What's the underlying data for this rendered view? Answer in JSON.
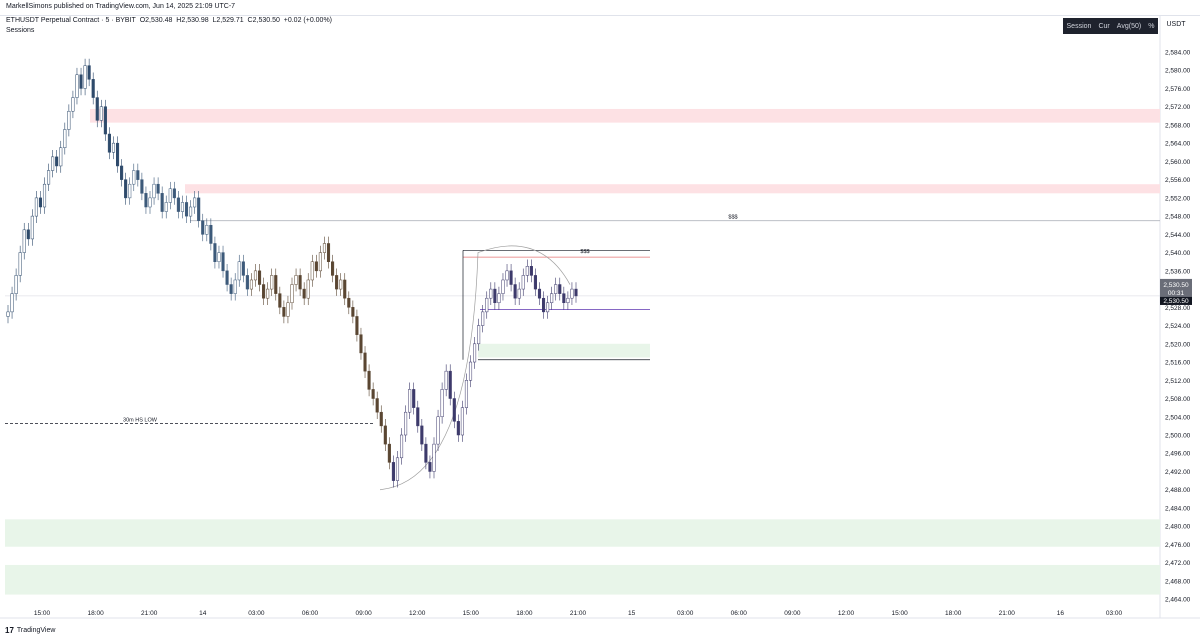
{
  "header": {
    "credit": "MarkellSimons published on TradingView.com, Jun 14, 2025 21:09 UTC-7",
    "symbol": "ETHUSDT Perpetual Contract · 5 · BYBIT",
    "open": "O2,530.48",
    "high": "H2,530.98",
    "low": "L2,529.71",
    "close": "C2,530.50",
    "change": "+0.02 (+0.00%)",
    "indicator": "Sessions"
  },
  "toolbar": {
    "session_panel": [
      "Session",
      "Cur",
      "Avg(50)",
      "%"
    ],
    "currency": "USDT"
  },
  "footer": {
    "logo_text": "TradingView"
  },
  "chart_data": {
    "type": "candlestick",
    "ylim": [
      2462.5,
      2587.5
    ],
    "y_ticks": [
      "2,584.00",
      "2,580.00",
      "2,576.00",
      "2,572.00",
      "2,568.00",
      "2,564.00",
      "2,560.00",
      "2,556.00",
      "2,552.00",
      "2,548.00",
      "2,544.00",
      "2,540.00",
      "2,536.00",
      "2,532.00",
      "2,528.00",
      "2,524.00",
      "2,520.00",
      "2,516.00",
      "2,512.00",
      "2,508.00",
      "2,504.00",
      "2,500.00",
      "2,496.00",
      "2,492.00",
      "2,488.00",
      "2,484.00",
      "2,480.00",
      "2,476.00",
      "2,472.00",
      "2,468.00",
      "2,464.00"
    ],
    "x_ticks": [
      "15:00",
      "18:00",
      "21:00",
      "14",
      "03:00",
      "06:00",
      "09:00",
      "12:00",
      "15:00",
      "18:00",
      "21:00",
      "15",
      "03:00",
      "06:00",
      "09:00",
      "12:00",
      "15:00",
      "18:00",
      "21:00",
      "16",
      "03:00"
    ],
    "last_price": "2,530.50",
    "countdown": "00:31",
    "close_series": [
      2527,
      2531,
      2535,
      2540,
      2545,
      2543,
      2548,
      2552,
      2550,
      2555,
      2558,
      2561,
      2559,
      2563,
      2567,
      2571,
      2574,
      2579,
      2576,
      2581,
      2578,
      2574,
      2569,
      2572,
      2566,
      2562,
      2564,
      2559,
      2556,
      2552,
      2555,
      2558,
      2556,
      2553,
      2550,
      2552,
      2555,
      2553,
      2549,
      2551,
      2554,
      2552,
      2549,
      2551,
      2548,
      2550,
      2552,
      2547,
      2544,
      2546,
      2542,
      2538,
      2540,
      2536,
      2533,
      2531,
      2534,
      2538,
      2535,
      2532,
      2534,
      2536,
      2533,
      2530,
      2532,
      2535,
      2531,
      2528,
      2526,
      2529,
      2533,
      2535,
      2532,
      2530,
      2534,
      2538,
      2536,
      2540,
      2542,
      2538,
      2535,
      2532,
      2534,
      2530,
      2528,
      2526,
      2522,
      2518,
      2514,
      2510,
      2508,
      2505,
      2502,
      2498,
      2494,
      2490,
      2495,
      2500,
      2505,
      2510,
      2506,
      2502,
      2498,
      2494,
      2492,
      2498,
      2504,
      2510,
      2514,
      2508,
      2503,
      2500,
      2506,
      2512,
      2516,
      2520,
      2524,
      2527,
      2530,
      2532,
      2529,
      2531,
      2534,
      2536,
      2533,
      2530,
      2532,
      2535,
      2537,
      2535,
      2532,
      2530,
      2527,
      2529,
      2531,
      2533,
      2531,
      2529,
      2530,
      2532,
      2530.5
    ],
    "annotations": [
      {
        "label": "$$$",
        "price": 2547
      },
      {
        "label": "$$$",
        "price": 2539.5
      },
      {
        "label": "30m HS LOW",
        "price": 2502.5
      }
    ],
    "zones": [
      {
        "kind": "supply",
        "color": "#fde1e4",
        "top": 2571.5,
        "bottom": 2568.5
      },
      {
        "kind": "supply",
        "color": "#fde1e4",
        "top": 2555,
        "bottom": 2553
      },
      {
        "kind": "demand",
        "color": "#e8f5e9",
        "top": 2481.5,
        "bottom": 2475.5
      },
      {
        "kind": "demand",
        "color": "#e8f5e9",
        "top": 2471.5,
        "bottom": 2465
      },
      {
        "kind": "demand",
        "color": "#e8f5e9",
        "top": 2520,
        "bottom": 2517
      }
    ]
  }
}
